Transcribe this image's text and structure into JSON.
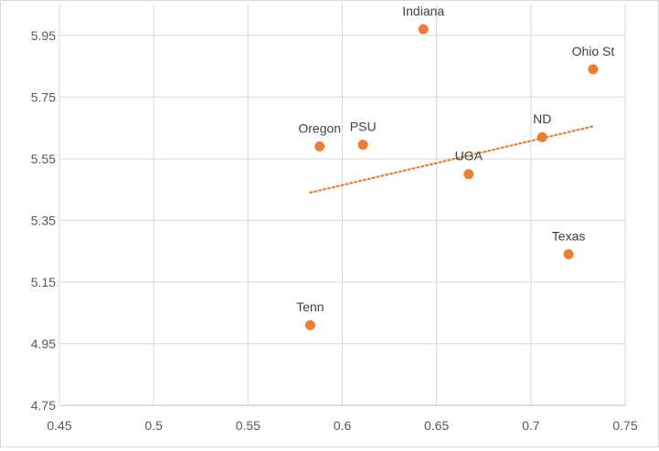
{
  "chart_data": {
    "type": "scatter",
    "title": "",
    "xlabel": "",
    "ylabel": "",
    "xlim": [
      0.45,
      0.75
    ],
    "ylim": [
      4.75,
      6.05
    ],
    "x_ticks": [
      "0.45",
      "0.5",
      "0.55",
      "0.6",
      "0.65",
      "0.7",
      "0.75"
    ],
    "y_ticks": [
      "4.75",
      "4.95",
      "5.15",
      "5.35",
      "5.55",
      "5.75",
      "5.95"
    ],
    "grid": true,
    "marker_color": "#ED7D31",
    "trendline": {
      "type": "linear",
      "style": "dotted",
      "color": "#ED7D31",
      "x": [
        0.583,
        0.733
      ],
      "y": [
        5.44,
        5.655
      ]
    },
    "points": [
      {
        "label": "Indiana",
        "x": 0.643,
        "y": 5.97
      },
      {
        "label": "Ohio St",
        "x": 0.733,
        "y": 5.84
      },
      {
        "label": "Oregon",
        "x": 0.588,
        "y": 5.59
      },
      {
        "label": "PSU",
        "x": 0.611,
        "y": 5.595
      },
      {
        "label": "ND",
        "x": 0.706,
        "y": 5.62
      },
      {
        "label": "UGA",
        "x": 0.667,
        "y": 5.5
      },
      {
        "label": "Texas",
        "x": 0.72,
        "y": 5.24
      },
      {
        "label": "Tenn",
        "x": 0.583,
        "y": 5.01
      }
    ]
  }
}
